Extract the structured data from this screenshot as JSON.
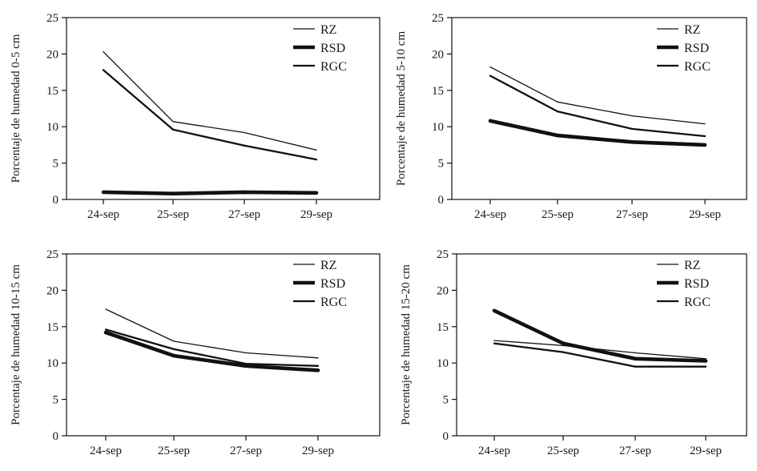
{
  "chart_data": [
    {
      "type": "line",
      "ylabel": "Porcentaje de humedad 0-5 cm",
      "categories": [
        "24-sep",
        "25-sep",
        "27-sep",
        "29-sep"
      ],
      "ylim": [
        0,
        25
      ],
      "yticks": [
        "0",
        "5",
        "10",
        "15",
        "20",
        "25"
      ],
      "legend_position": "top-right",
      "series": [
        {
          "name": "RZ",
          "values": [
            20.3,
            10.7,
            9.2,
            6.8
          ],
          "weight": "thin"
        },
        {
          "name": "RSD",
          "values": [
            1.0,
            0.8,
            1.0,
            0.9
          ],
          "weight": "thick"
        },
        {
          "name": "RGC",
          "values": [
            17.8,
            9.6,
            7.4,
            5.5
          ],
          "weight": "medium"
        }
      ]
    },
    {
      "type": "line",
      "ylabel": "Porcentaje de humedad 5-10 cm",
      "categories": [
        "24-sep",
        "25-sep",
        "27-sep",
        "29-sep"
      ],
      "ylim": [
        0,
        25
      ],
      "yticks": [
        "0",
        "5",
        "10",
        "15",
        "20",
        "25"
      ],
      "legend_position": "top-right",
      "series": [
        {
          "name": "RZ",
          "values": [
            18.2,
            13.4,
            11.5,
            10.4
          ],
          "weight": "thin"
        },
        {
          "name": "RSD",
          "values": [
            10.8,
            8.8,
            7.9,
            7.5
          ],
          "weight": "thick"
        },
        {
          "name": "RGC",
          "values": [
            17.0,
            12.1,
            9.7,
            8.7
          ],
          "weight": "medium"
        }
      ]
    },
    {
      "type": "line",
      "ylabel": "Porcentaje de humedad 10-15 cm",
      "categories": [
        "24-sep",
        "25-sep",
        "27-sep",
        "29-sep"
      ],
      "ylim": [
        0,
        25
      ],
      "yticks": [
        "0",
        "5",
        "10",
        "15",
        "20",
        "25"
      ],
      "legend_position": "top-right",
      "series": [
        {
          "name": "RZ",
          "values": [
            17.4,
            13.0,
            11.4,
            10.7
          ],
          "weight": "thin"
        },
        {
          "name": "RSD",
          "values": [
            14.2,
            11.0,
            9.6,
            9.0
          ],
          "weight": "thick"
        },
        {
          "name": "RGC",
          "values": [
            14.6,
            11.9,
            9.9,
            9.6
          ],
          "weight": "medium"
        }
      ]
    },
    {
      "type": "line",
      "ylabel": "Porcentaje de humedad 15-20 cm",
      "categories": [
        "24-sep",
        "25-sep",
        "27-sep",
        "29-sep"
      ],
      "ylim": [
        0,
        25
      ],
      "yticks": [
        "0",
        "5",
        "10",
        "15",
        "20",
        "25"
      ],
      "legend_position": "top-right",
      "series": [
        {
          "name": "RZ",
          "values": [
            13.1,
            12.4,
            11.4,
            10.6
          ],
          "weight": "thin"
        },
        {
          "name": "RSD",
          "values": [
            17.2,
            12.7,
            10.6,
            10.3
          ],
          "weight": "thick"
        },
        {
          "name": "RGC",
          "values": [
            12.7,
            11.5,
            9.5,
            9.5
          ],
          "weight": "medium"
        }
      ]
    }
  ]
}
